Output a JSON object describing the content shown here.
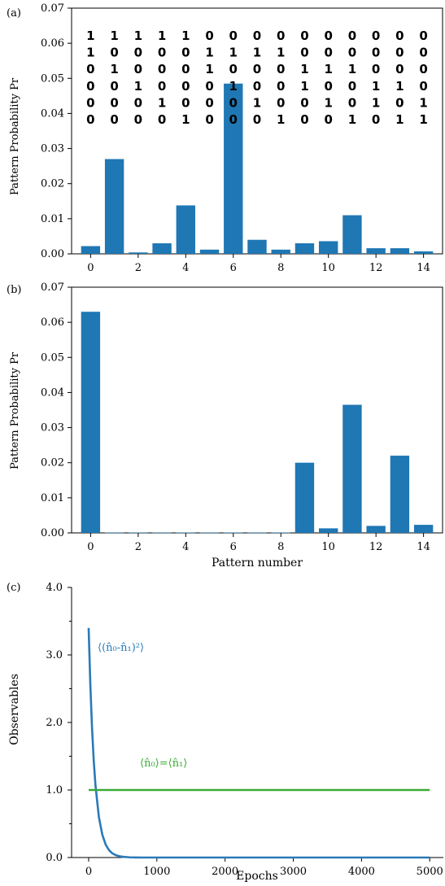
{
  "colors": {
    "bar": "#1f77b4",
    "decay_line": "#2a7ab8",
    "flat_line": "#3aaa35",
    "decay_label": "#2a7ab8",
    "flat_label": "#3aaa35",
    "axis": "#000000"
  },
  "chart_data": [
    {
      "panel_label": "(a)",
      "type": "bar",
      "ylabel": "Pattern Probability Pr",
      "xlabel": "",
      "ylim": [
        0,
        0.07
      ],
      "yticks": [
        "0.00",
        "0.01",
        "0.02",
        "0.03",
        "0.04",
        "0.05",
        "0.06",
        "0.07"
      ],
      "xticks": [
        "0",
        "2",
        "4",
        "6",
        "8",
        "10",
        "12",
        "14"
      ],
      "categories": [
        0,
        1,
        2,
        3,
        4,
        5,
        6,
        7,
        8,
        9,
        10,
        11,
        12,
        13,
        14
      ],
      "values": [
        0.0022,
        0.027,
        0.0004,
        0.003,
        0.0138,
        0.0012,
        0.0485,
        0.004,
        0.0012,
        0.003,
        0.0036,
        0.011,
        0.0016,
        0.0016,
        0.0007
      ],
      "pattern_rows": [
        [
          "1",
          "1",
          "1",
          "1",
          "1",
          "0",
          "0",
          "0",
          "0",
          "0",
          "0",
          "0",
          "0",
          "0",
          "0"
        ],
        [
          "1",
          "0",
          "0",
          "0",
          "0",
          "1",
          "1",
          "1",
          "1",
          "0",
          "0",
          "0",
          "0",
          "0",
          "0"
        ],
        [
          "0",
          "1",
          "0",
          "0",
          "0",
          "1",
          "0",
          "0",
          "0",
          "1",
          "1",
          "1",
          "0",
          "0",
          "0"
        ],
        [
          "0",
          "0",
          "1",
          "0",
          "0",
          "0",
          "1",
          "0",
          "0",
          "1",
          "0",
          "0",
          "1",
          "1",
          "0"
        ],
        [
          "0",
          "0",
          "0",
          "1",
          "0",
          "0",
          "0",
          "1",
          "0",
          "0",
          "1",
          "0",
          "1",
          "0",
          "1"
        ],
        [
          "0",
          "0",
          "0",
          "0",
          "1",
          "0",
          "0",
          "0",
          "1",
          "0",
          "0",
          "1",
          "0",
          "1",
          "1"
        ]
      ]
    },
    {
      "panel_label": "(b)",
      "type": "bar",
      "ylabel": "Pattern Probability Pr",
      "xlabel": "Pattern number",
      "ylim": [
        0,
        0.07
      ],
      "yticks": [
        "0.00",
        "0.01",
        "0.02",
        "0.03",
        "0.04",
        "0.05",
        "0.06",
        "0.07"
      ],
      "xticks": [
        "0",
        "2",
        "4",
        "6",
        "8",
        "10",
        "12",
        "14"
      ],
      "categories": [
        0,
        1,
        2,
        3,
        4,
        5,
        6,
        7,
        8,
        9,
        10,
        11,
        12,
        13,
        14
      ],
      "values": [
        0.063,
        0.0001,
        0.0001,
        0.0001,
        0.0001,
        0.0001,
        0.0001,
        0.0001,
        0.0001,
        0.02,
        0.0013,
        0.0365,
        0.002,
        0.022,
        0.0023
      ]
    },
    {
      "panel_label": "(c)",
      "type": "line",
      "ylabel": "Observables",
      "xlabel": "Epochs",
      "xlim": [
        0,
        5000
      ],
      "ylim": [
        0,
        4.0
      ],
      "xticks": [
        "0",
        "1000",
        "2000",
        "3000",
        "4000",
        "5000"
      ],
      "yticks": [
        "0.0",
        "1.0",
        "2.0",
        "3.0",
        "4.0"
      ],
      "series": [
        {
          "name": "⟨(n̂₀-n̂₁)²⟩",
          "x": [
            0,
            25,
            50,
            75,
            100,
            150,
            200,
            250,
            300,
            350,
            400,
            450,
            500,
            600,
            700,
            800,
            1000,
            1500,
            2000,
            3000,
            4000,
            5000
          ],
          "y": [
            3.4,
            2.55,
            1.91,
            1.43,
            1.07,
            0.6,
            0.34,
            0.19,
            0.107,
            0.06,
            0.034,
            0.019,
            0.011,
            0.003,
            0.001,
            0.0,
            0.0,
            0.0,
            0.0,
            0.0,
            0.0,
            0.0
          ]
        },
        {
          "name": "⟨n̂₀⟩=⟨n̂₁⟩",
          "x": [
            0,
            1000,
            2000,
            3000,
            4000,
            5000
          ],
          "y": [
            1.0,
            1.0,
            1.0,
            1.0,
            1.0,
            1.0
          ]
        }
      ]
    }
  ]
}
